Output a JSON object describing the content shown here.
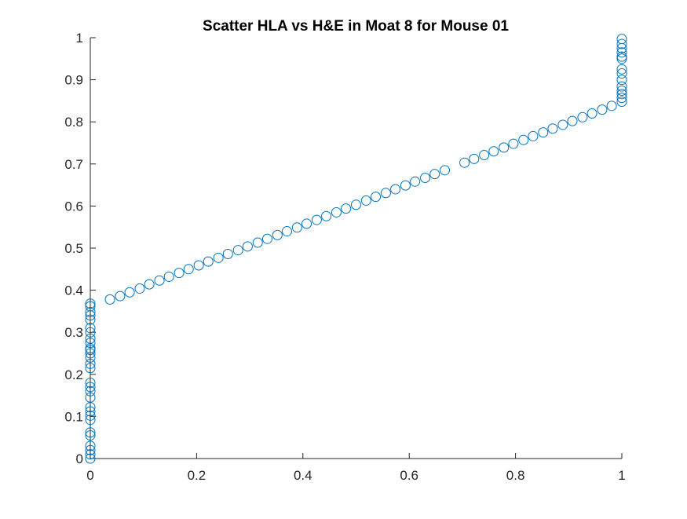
{
  "chart_data": {
    "type": "scatter",
    "title": "Scatter HLA vs H&E in Moat 8 for Mouse 01",
    "xlabel": "",
    "ylabel": "",
    "xlim": [
      0,
      1
    ],
    "ylim": [
      0,
      1
    ],
    "x_ticks": [
      "0",
      "0.2",
      "0.4",
      "0.6",
      "0.8",
      "1"
    ],
    "x_tick_values": [
      0,
      0.2,
      0.4,
      0.6,
      0.8,
      1
    ],
    "y_ticks": [
      "0",
      "0.1",
      "0.2",
      "0.3",
      "0.4",
      "0.5",
      "0.6",
      "0.7",
      "0.8",
      "0.9",
      "1"
    ],
    "y_tick_values": [
      0,
      0.1,
      0.2,
      0.3,
      0.4,
      0.5,
      0.6,
      0.7,
      0.8,
      0.9,
      1
    ],
    "grid": false,
    "marker": "open-circle",
    "marker_color": "#0072BD",
    "axis_color": "#262626",
    "series": [
      {
        "x": [
          0,
          0,
          0,
          0,
          0,
          0,
          0,
          0,
          0,
          0,
          0,
          0,
          0,
          0,
          0,
          0,
          0,
          0,
          0,
          0,
          0,
          0,
          0,
          0,
          0,
          0,
          0,
          0,
          0,
          0.037,
          0.056,
          0.074,
          0.093,
          0.111,
          0.13,
          0.148,
          0.167,
          0.185,
          0.204,
          0.222,
          0.241,
          0.259,
          0.278,
          0.296,
          0.315,
          0.333,
          0.352,
          0.37,
          0.389,
          0.407,
          0.426,
          0.444,
          0.463,
          0.481,
          0.5,
          0.519,
          0.537,
          0.556,
          0.574,
          0.593,
          0.611,
          0.63,
          0.648,
          0.667,
          0.704,
          0.722,
          0.741,
          0.759,
          0.778,
          0.796,
          0.815,
          0.833,
          0.852,
          0.87,
          0.889,
          0.907,
          0.926,
          0.944,
          0.963,
          0.981,
          1,
          1,
          1,
          1,
          1,
          1,
          1,
          1,
          1,
          1,
          1,
          1,
          1,
          1
        ],
        "y": [
          0.0,
          0.01,
          0.02,
          0.03,
          0.055,
          0.062,
          0.092,
          0.102,
          0.112,
          0.122,
          0.145,
          0.16,
          0.17,
          0.18,
          0.215,
          0.225,
          0.24,
          0.25,
          0.262,
          0.275,
          0.285,
          0.3,
          0.31,
          0.33,
          0.34,
          0.348,
          0.362,
          0.368,
          0.258,
          0.378,
          0.386,
          0.395,
          0.404,
          0.414,
          0.423,
          0.432,
          0.441,
          0.45,
          0.459,
          0.468,
          0.477,
          0.486,
          0.495,
          0.504,
          0.513,
          0.522,
          0.531,
          0.54,
          0.549,
          0.558,
          0.567,
          0.576,
          0.585,
          0.594,
          0.603,
          0.613,
          0.622,
          0.631,
          0.64,
          0.649,
          0.658,
          0.667,
          0.676,
          0.685,
          0.703,
          0.712,
          0.721,
          0.73,
          0.739,
          0.748,
          0.757,
          0.766,
          0.775,
          0.784,
          0.793,
          0.802,
          0.811,
          0.82,
          0.829,
          0.838,
          0.848,
          0.857,
          0.866,
          0.874,
          0.884,
          0.9,
          0.915,
          0.925,
          0.955,
          0.965,
          0.975,
          0.985,
          0.997,
          0.95
        ]
      }
    ]
  }
}
